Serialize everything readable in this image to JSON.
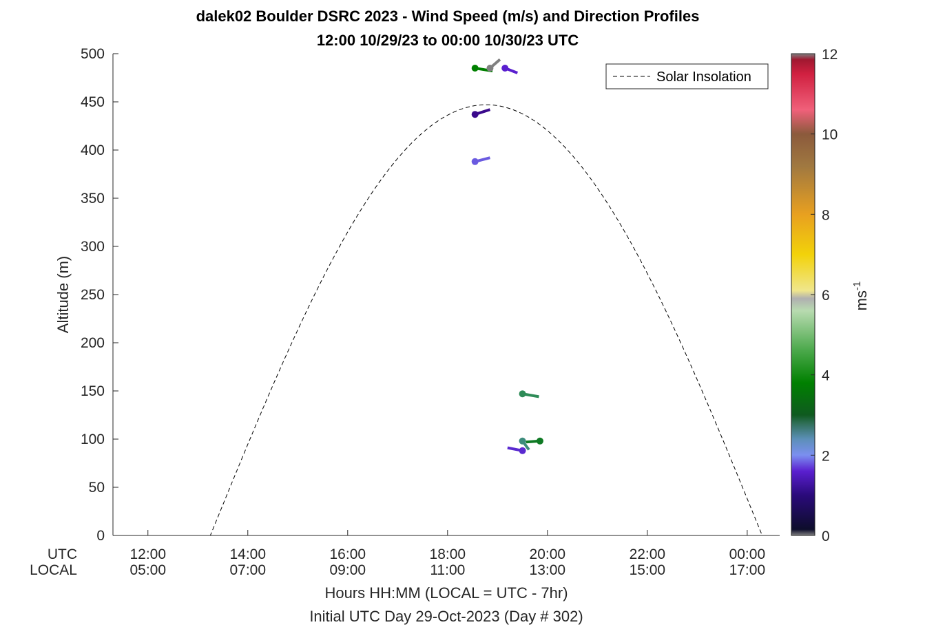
{
  "chart_data": {
    "type": "scatter",
    "title": "dalek02 Boulder DSRC 2023 - Wind Speed (m/s) and Direction Profiles",
    "subtitle": "12:00 10/29/23 to 00:00 10/30/23  UTC",
    "xlabel": "Hours HH:MM  (LOCAL = UTC - 7hr)",
    "xlabel2": "Initial UTC Day 29-Oct-2023 (Day # 302)",
    "ylabel": "Altitude (m)",
    "ylim": [
      0,
      500
    ],
    "xlim_utc_hours": [
      11.3,
      24.65
    ],
    "yticks": [
      "0",
      "50",
      "100",
      "150",
      "200",
      "250",
      "300",
      "350",
      "400",
      "450",
      "500"
    ],
    "xtick_row_labels": {
      "utc": "UTC",
      "local": "LOCAL"
    },
    "xticks": [
      {
        "utc": "12:00",
        "local": "05:00",
        "hour": 12
      },
      {
        "utc": "14:00",
        "local": "07:00",
        "hour": 14
      },
      {
        "utc": "16:00",
        "local": "09:00",
        "hour": 16
      },
      {
        "utc": "18:00",
        "local": "11:00",
        "hour": 18
      },
      {
        "utc": "20:00",
        "local": "13:00",
        "hour": 20
      },
      {
        "utc": "22:00",
        "local": "15:00",
        "hour": 22
      },
      {
        "utc": "00:00",
        "local": "17:00",
        "hour": 24
      }
    ],
    "legend": {
      "entry": "Solar Insolation",
      "position": "top-right",
      "style": "dashed"
    },
    "solar_insolation": {
      "rise_utc_hours": 13.25,
      "set_utc_hours": 24.3,
      "peak_altitude": 447,
      "flat_before_rise": true,
      "flat_after_set": true
    },
    "wind_barbs": [
      {
        "time_utc_hours": 18.55,
        "altitude": 485,
        "speed": 4.0,
        "color": "#008000",
        "tail_dx": 0.35,
        "tail_dy": -3
      },
      {
        "time_utc_hours": 18.85,
        "altitude": 485,
        "speed": 6.0,
        "color": "#808080",
        "tail_dx": 0.2,
        "tail_dy": 9
      },
      {
        "time_utc_hours": 19.15,
        "altitude": 485,
        "speed": 1.5,
        "color": "#5a1fcf",
        "tail_dx": 0.25,
        "tail_dy": -5
      },
      {
        "time_utc_hours": 18.55,
        "altitude": 437,
        "speed": 1.0,
        "color": "#3a0a8c",
        "tail_dx": 0.3,
        "tail_dy": 5
      },
      {
        "time_utc_hours": 18.55,
        "altitude": 388,
        "speed": 2.0,
        "color": "#6a5ae0",
        "tail_dx": 0.3,
        "tail_dy": 4
      },
      {
        "time_utc_hours": 19.5,
        "altitude": 147,
        "speed": 4.0,
        "color": "#2e8b57",
        "tail_dx": 0.33,
        "tail_dy": -3
      },
      {
        "time_utc_hours": 19.5,
        "altitude": 98,
        "speed": 3.0,
        "color": "#3c8c7c",
        "tail_dx": 0.13,
        "tail_dy": -9
      },
      {
        "time_utc_hours": 19.85,
        "altitude": 98,
        "speed": 4.5,
        "color": "#0f7a24",
        "tail_dx": -0.28,
        "tail_dy": -1
      },
      {
        "time_utc_hours": 19.5,
        "altitude": 88,
        "speed": 1.8,
        "color": "#5a2ad0",
        "tail_dx": -0.3,
        "tail_dy": 3
      }
    ],
    "colorbar": {
      "label": "ms",
      "label_superscript": "-1",
      "range": [
        0,
        12
      ],
      "ticks": [
        "0",
        "2",
        "4",
        "6",
        "8",
        "10",
        "12"
      ],
      "stops": [
        {
          "value": 0.0,
          "color": "#808080"
        },
        {
          "value": 0.15,
          "color": "#0d0d2b"
        },
        {
          "value": 1.0,
          "color": "#2a0a7a"
        },
        {
          "value": 1.6,
          "color": "#5a1fcf"
        },
        {
          "value": 2.0,
          "color": "#7b8ff0"
        },
        {
          "value": 2.4,
          "color": "#5c8fb8"
        },
        {
          "value": 2.8,
          "color": "#2e6e55"
        },
        {
          "value": 3.0,
          "color": "#0f5a1f"
        },
        {
          "value": 3.8,
          "color": "#008000"
        },
        {
          "value": 4.6,
          "color": "#4aa84a"
        },
        {
          "value": 5.6,
          "color": "#b8dbb0"
        },
        {
          "value": 5.9,
          "color": "#b0b0b0"
        },
        {
          "value": 6.1,
          "color": "#f0e68c"
        },
        {
          "value": 7.0,
          "color": "#f2d20a"
        },
        {
          "value": 8.0,
          "color": "#e8a020"
        },
        {
          "value": 9.2,
          "color": "#a07840"
        },
        {
          "value": 10.0,
          "color": "#8b5a3c"
        },
        {
          "value": 10.6,
          "color": "#f0607a"
        },
        {
          "value": 11.5,
          "color": "#d02040"
        },
        {
          "value": 11.85,
          "color": "#a01830"
        },
        {
          "value": 12.0,
          "color": "#808080"
        }
      ]
    }
  }
}
